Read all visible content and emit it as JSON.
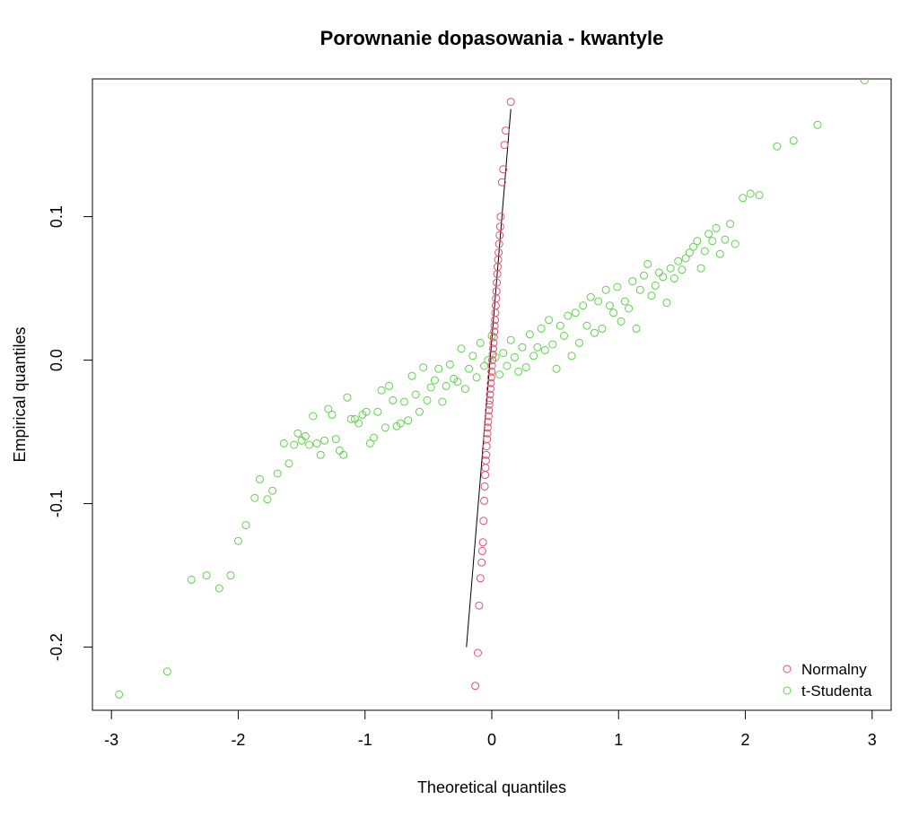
{
  "chart_data": {
    "type": "scatter",
    "title": "Porownanie dopasowania - kwantyle",
    "xlabel": "Theoretical quantiles",
    "ylabel": "Empirical quantiles",
    "xlim": [
      -3.15,
      3.15
    ],
    "ylim": [
      -0.244,
      0.196
    ],
    "x_ticks": [
      -3,
      -2,
      -1,
      0,
      1,
      2,
      3
    ],
    "x_tick_labels": [
      "-3",
      "-2",
      "-1",
      "0",
      "1",
      "2",
      "3"
    ],
    "y_ticks": [
      -0.2,
      -0.1,
      0.0,
      0.1
    ],
    "y_tick_labels": [
      "-0.2",
      "-0.1",
      "0.0",
      "0.1"
    ],
    "grid": false,
    "legend_position": "bottom-right",
    "reference_line": {
      "color": "#000000",
      "points": [
        [
          -0.2,
          -0.2
        ],
        [
          0.15,
          0.175
        ]
      ]
    },
    "series": [
      {
        "name": "Normalny",
        "color": "#df536b",
        "points": [
          [
            -0.13,
            -0.227
          ],
          [
            -0.11,
            -0.204
          ],
          [
            -0.1,
            -0.171
          ],
          [
            -0.09,
            -0.152
          ],
          [
            -0.08,
            -0.141
          ],
          [
            -0.075,
            -0.133
          ],
          [
            -0.07,
            -0.127
          ],
          [
            -0.065,
            -0.112
          ],
          [
            -0.06,
            -0.098
          ],
          [
            -0.056,
            -0.088
          ],
          [
            -0.053,
            -0.08
          ],
          [
            -0.05,
            -0.075
          ],
          [
            -0.047,
            -0.07
          ],
          [
            -0.044,
            -0.066
          ],
          [
            -0.041,
            -0.06
          ],
          [
            -0.038,
            -0.055
          ],
          [
            -0.035,
            -0.051
          ],
          [
            -0.032,
            -0.047
          ],
          [
            -0.029,
            -0.043
          ],
          [
            -0.026,
            -0.039
          ],
          [
            -0.023,
            -0.035
          ],
          [
            -0.02,
            -0.031
          ],
          [
            -0.017,
            -0.028
          ],
          [
            -0.014,
            -0.024
          ],
          [
            -0.011,
            -0.02
          ],
          [
            -0.008,
            -0.016
          ],
          [
            -0.005,
            -0.012
          ],
          [
            -0.002,
            -0.008
          ],
          [
            0.001,
            -0.004
          ],
          [
            0.004,
            0.0
          ],
          [
            0.007,
            0.004
          ],
          [
            0.01,
            0.008
          ],
          [
            0.013,
            0.012
          ],
          [
            0.016,
            0.016
          ],
          [
            0.019,
            0.02
          ],
          [
            0.022,
            0.024
          ],
          [
            0.025,
            0.028
          ],
          [
            0.028,
            0.033
          ],
          [
            0.031,
            0.038
          ],
          [
            0.034,
            0.043
          ],
          [
            0.037,
            0.048
          ],
          [
            0.04,
            0.054
          ],
          [
            0.043,
            0.06
          ],
          [
            0.046,
            0.065
          ],
          [
            0.05,
            0.07
          ],
          [
            0.054,
            0.075
          ],
          [
            0.058,
            0.081
          ],
          [
            0.062,
            0.087
          ],
          [
            0.066,
            0.093
          ],
          [
            0.07,
            0.1
          ],
          [
            0.08,
            0.124
          ],
          [
            0.09,
            0.133
          ],
          [
            0.1,
            0.15
          ],
          [
            0.11,
            0.16
          ],
          [
            0.15,
            0.18
          ]
        ]
      },
      {
        "name": "t-Studenta",
        "color": "#61d04f",
        "points": [
          [
            -2.94,
            -0.233
          ],
          [
            -2.56,
            -0.217
          ],
          [
            -2.37,
            -0.153
          ],
          [
            -2.25,
            -0.15
          ],
          [
            -2.15,
            -0.159
          ],
          [
            -2.06,
            -0.15
          ],
          [
            -2.0,
            -0.126
          ],
          [
            -1.94,
            -0.115
          ],
          [
            -1.87,
            -0.096
          ],
          [
            -1.83,
            -0.083
          ],
          [
            -1.77,
            -0.097
          ],
          [
            -1.73,
            -0.091
          ],
          [
            -1.69,
            -0.079
          ],
          [
            -1.64,
            -0.058
          ],
          [
            -1.6,
            -0.072
          ],
          [
            -1.56,
            -0.059
          ],
          [
            -1.53,
            -0.051
          ],
          [
            -1.5,
            -0.056
          ],
          [
            -1.47,
            -0.053
          ],
          [
            -1.44,
            -0.059
          ],
          [
            -1.41,
            -0.039
          ],
          [
            -1.38,
            -0.058
          ],
          [
            -1.35,
            -0.066
          ],
          [
            -1.32,
            -0.056
          ],
          [
            -1.29,
            -0.034
          ],
          [
            -1.26,
            -0.038
          ],
          [
            -1.23,
            -0.055
          ],
          [
            -1.2,
            -0.063
          ],
          [
            -1.17,
            -0.066
          ],
          [
            -1.14,
            -0.026
          ],
          [
            -1.11,
            -0.041
          ],
          [
            -1.08,
            -0.041
          ],
          [
            -1.05,
            -0.044
          ],
          [
            -1.02,
            -0.038
          ],
          [
            -0.99,
            -0.036
          ],
          [
            -0.96,
            -0.058
          ],
          [
            -0.93,
            -0.054
          ],
          [
            -0.9,
            -0.036
          ],
          [
            -0.87,
            -0.021
          ],
          [
            -0.84,
            -0.047
          ],
          [
            -0.81,
            -0.018
          ],
          [
            -0.78,
            -0.028
          ],
          [
            -0.75,
            -0.046
          ],
          [
            -0.72,
            -0.044
          ],
          [
            -0.69,
            -0.029
          ],
          [
            -0.66,
            -0.042
          ],
          [
            -0.63,
            -0.011
          ],
          [
            -0.6,
            -0.024
          ],
          [
            -0.57,
            -0.036
          ],
          [
            -0.54,
            -0.005
          ],
          [
            -0.51,
            -0.028
          ],
          [
            -0.48,
            -0.019
          ],
          [
            -0.45,
            -0.014
          ],
          [
            -0.42,
            -0.006
          ],
          [
            -0.39,
            -0.029
          ],
          [
            -0.36,
            -0.018
          ],
          [
            -0.33,
            -0.003
          ],
          [
            -0.3,
            -0.013
          ],
          [
            -0.27,
            -0.015
          ],
          [
            -0.24,
            0.008
          ],
          [
            -0.21,
            -0.02
          ],
          [
            -0.18,
            -0.006
          ],
          [
            -0.15,
            0.003
          ],
          [
            -0.12,
            -0.012
          ],
          [
            -0.09,
            0.012
          ],
          [
            -0.06,
            -0.004
          ],
          [
            -0.03,
            0.0
          ],
          [
            0.0,
            0.017
          ],
          [
            0.03,
            0.002
          ],
          [
            0.06,
            -0.01
          ],
          [
            0.09,
            0.005
          ],
          [
            0.12,
            -0.004
          ],
          [
            0.15,
            0.014
          ],
          [
            0.18,
            0.002
          ],
          [
            0.21,
            -0.008
          ],
          [
            0.24,
            0.009
          ],
          [
            0.27,
            -0.005
          ],
          [
            0.3,
            0.018
          ],
          [
            0.33,
            0.003
          ],
          [
            0.36,
            0.009
          ],
          [
            0.39,
            0.022
          ],
          [
            0.42,
            0.007
          ],
          [
            0.45,
            0.028
          ],
          [
            0.48,
            0.011
          ],
          [
            0.51,
            -0.006
          ],
          [
            0.54,
            0.024
          ],
          [
            0.57,
            0.017
          ],
          [
            0.6,
            0.031
          ],
          [
            0.63,
            0.003
          ],
          [
            0.66,
            0.033
          ],
          [
            0.69,
            0.012
          ],
          [
            0.72,
            0.038
          ],
          [
            0.75,
            0.024
          ],
          [
            0.78,
            0.044
          ],
          [
            0.81,
            0.019
          ],
          [
            0.84,
            0.041
          ],
          [
            0.87,
            0.022
          ],
          [
            0.9,
            0.049
          ],
          [
            0.93,
            0.038
          ],
          [
            0.96,
            0.033
          ],
          [
            0.99,
            0.051
          ],
          [
            1.02,
            0.027
          ],
          [
            1.05,
            0.041
          ],
          [
            1.08,
            0.036
          ],
          [
            1.11,
            0.055
          ],
          [
            1.14,
            0.022
          ],
          [
            1.17,
            0.049
          ],
          [
            1.2,
            0.059
          ],
          [
            1.23,
            0.067
          ],
          [
            1.26,
            0.045
          ],
          [
            1.29,
            0.052
          ],
          [
            1.32,
            0.061
          ],
          [
            1.35,
            0.058
          ],
          [
            1.38,
            0.04
          ],
          [
            1.41,
            0.064
          ],
          [
            1.44,
            0.057
          ],
          [
            1.47,
            0.069
          ],
          [
            1.5,
            0.063
          ],
          [
            1.53,
            0.071
          ],
          [
            1.56,
            0.075
          ],
          [
            1.59,
            0.079
          ],
          [
            1.62,
            0.083
          ],
          [
            1.65,
            0.064
          ],
          [
            1.68,
            0.076
          ],
          [
            1.71,
            0.088
          ],
          [
            1.74,
            0.083
          ],
          [
            1.77,
            0.092
          ],
          [
            1.8,
            0.074
          ],
          [
            1.84,
            0.084
          ],
          [
            1.88,
            0.095
          ],
          [
            1.92,
            0.081
          ],
          [
            1.98,
            0.113
          ],
          [
            2.04,
            0.116
          ],
          [
            2.11,
            0.115
          ],
          [
            2.25,
            0.149
          ],
          [
            2.38,
            0.153
          ],
          [
            2.57,
            0.164
          ],
          [
            2.94,
            0.195
          ]
        ]
      }
    ]
  }
}
